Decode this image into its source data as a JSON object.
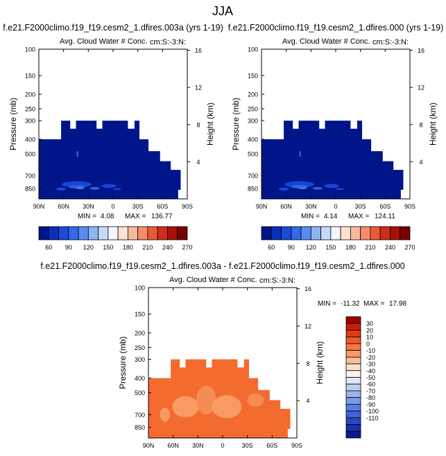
{
  "figure": {
    "title": "JJA"
  },
  "chart_data": [
    {
      "type": "heatmap",
      "title": "f.e21.F2000climo.f19_f19.cesm2_1.dfires.003a (yrs 1-19)",
      "subtitle": "Avg. Cloud Water # Conc.",
      "corner_label": "cm:S:-3:N:",
      "ylabel_left": "Pressure (mb)",
      "ylabel_right": "Height (km)",
      "x_tick_labels": [
        "90N",
        "60N",
        "30N",
        "0",
        "30S",
        "60S",
        "90S"
      ],
      "x_ticks": [
        90,
        60,
        30,
        0,
        -30,
        -60,
        -90
      ],
      "xlim": [
        90,
        -90
      ],
      "y_ticks": [
        100,
        150,
        200,
        250,
        300,
        400,
        500,
        700,
        850
      ],
      "y_tick_labels": [
        "100",
        "150",
        "200",
        "250",
        "300",
        "400",
        "500",
        "700",
        "850"
      ],
      "ylim": [
        100,
        1000
      ],
      "y_scale": "log",
      "height_ticks": [
        16,
        12,
        8,
        4
      ],
      "height_tick_labels": [
        "16",
        "12",
        "8",
        "4"
      ],
      "min_label": "MIN =",
      "min_value": "4.08",
      "max_label": "MAX =",
      "max_value": "136.77",
      "colorbar": {
        "orientation": "horizontal",
        "levels": [
          60,
          90,
          120,
          150,
          180,
          210,
          240,
          270
        ],
        "level_labels": [
          "60",
          "90",
          "120",
          "150",
          "180",
          "210",
          "240",
          "270"
        ],
        "colors": [
          "#00158a",
          "#0a2fb8",
          "#1c4ad9",
          "#3469e8",
          "#5a8cf0",
          "#8fb5f6",
          "#c4dafb",
          "#f3f6fd",
          "#fde1d1",
          "#fbb99c",
          "#f68c68",
          "#ea5a3a",
          "#d22b18",
          "#a8100a",
          "#7a0000"
        ]
      },
      "fill_color": "#00158a",
      "blob_colors": [
        "#1c4ad9",
        "#3469e8",
        "#5a8cf0"
      ]
    },
    {
      "type": "heatmap",
      "title": "f.e21.F2000climo.f19_f19.cesm2_1.dfires.000 (yrs 1-19)",
      "subtitle": "Avg. Cloud Water # Conc.",
      "corner_label": "cm:S:-3:N:",
      "ylabel_left": "Pressure (mb)",
      "ylabel_right": "Height (km)",
      "x_tick_labels": [
        "90N",
        "60N",
        "30N",
        "0",
        "30S",
        "60S",
        "90S"
      ],
      "x_ticks": [
        90,
        60,
        30,
        0,
        -30,
        -60,
        -90
      ],
      "xlim": [
        90,
        -90
      ],
      "y_ticks": [
        100,
        150,
        200,
        250,
        300,
        400,
        500,
        700,
        850
      ],
      "y_tick_labels": [
        "100",
        "150",
        "200",
        "250",
        "300",
        "400",
        "500",
        "700",
        "850"
      ],
      "ylim": [
        100,
        1000
      ],
      "y_scale": "log",
      "height_ticks": [
        16,
        12,
        8,
        4
      ],
      "height_tick_labels": [
        "16",
        "12",
        "8",
        "4"
      ],
      "min_label": "MIN =",
      "min_value": "4.14",
      "max_label": "MAX =",
      "max_value": "124.11",
      "colorbar": {
        "orientation": "horizontal",
        "levels": [
          60,
          90,
          120,
          150,
          180,
          210,
          240,
          270
        ],
        "level_labels": [
          "60",
          "90",
          "120",
          "150",
          "180",
          "210",
          "240",
          "270"
        ],
        "colors": [
          "#00158a",
          "#0a2fb8",
          "#1c4ad9",
          "#3469e8",
          "#5a8cf0",
          "#8fb5f6",
          "#c4dafb",
          "#f3f6fd",
          "#fde1d1",
          "#fbb99c",
          "#f68c68",
          "#ea5a3a",
          "#d22b18",
          "#a8100a",
          "#7a0000"
        ]
      },
      "fill_color": "#00158a",
      "blob_colors": [
        "#1c4ad9",
        "#3469e8",
        "#5a8cf0"
      ]
    },
    {
      "type": "heatmap",
      "title": "f.e21.F2000climo.f19_f19.cesm2_1.dfires.003a - f.e21.F2000climo.f19_f19.cesm2_1.dfires.000",
      "subtitle": "Avg. Cloud Water # Conc.",
      "corner_label": "cm:S:-3:N:",
      "ylabel_left": "Pressure (mb)",
      "ylabel_right": "Height (km)",
      "x_tick_labels": [
        "90N",
        "60N",
        "30N",
        "0",
        "30S",
        "60S",
        "90S"
      ],
      "x_ticks": [
        90,
        60,
        30,
        0,
        -30,
        -60,
        -90
      ],
      "xlim": [
        90,
        -90
      ],
      "y_ticks": [
        100,
        150,
        200,
        250,
        300,
        400,
        500,
        700,
        850
      ],
      "y_tick_labels": [
        "100",
        "150",
        "200",
        "250",
        "300",
        "400",
        "500",
        "700",
        "850"
      ],
      "ylim": [
        100,
        1000
      ],
      "y_scale": "log",
      "height_ticks": [
        16,
        12,
        8,
        4
      ],
      "height_tick_labels": [
        "16",
        "12",
        "8",
        "4"
      ],
      "min_label": "MIN =",
      "min_value": "-11.32",
      "max_label": "MAX =",
      "max_value": "17.98",
      "colorbar": {
        "orientation": "vertical",
        "levels": [
          30,
          20,
          10,
          0,
          -10,
          -20,
          -30,
          -40,
          -50,
          -60,
          -70,
          -80,
          -90,
          -100,
          -110
        ],
        "level_labels": [
          "30",
          "20",
          "10",
          "0",
          "-10",
          "-20",
          "-30",
          "-40",
          "-50",
          "-60",
          "-70",
          "-80",
          "-90",
          "-100",
          "-110"
        ],
        "colors": [
          "#a00000",
          "#c81e08",
          "#e03c14",
          "#f05a28",
          "#f5783e",
          "#f89a66",
          "#fbbd98",
          "#fde0cc",
          "#fdf3e8",
          "#dfe7f7",
          "#bccff0",
          "#99b4ea",
          "#7a9ae6",
          "#5a7de0",
          "#3e60d8",
          "#2846c8",
          "#1a30b0",
          "#0c1a8f"
        ]
      },
      "fill_color": "#f36b2e",
      "blob_colors": [
        "#f8a06a",
        "#f59058"
      ]
    }
  ]
}
